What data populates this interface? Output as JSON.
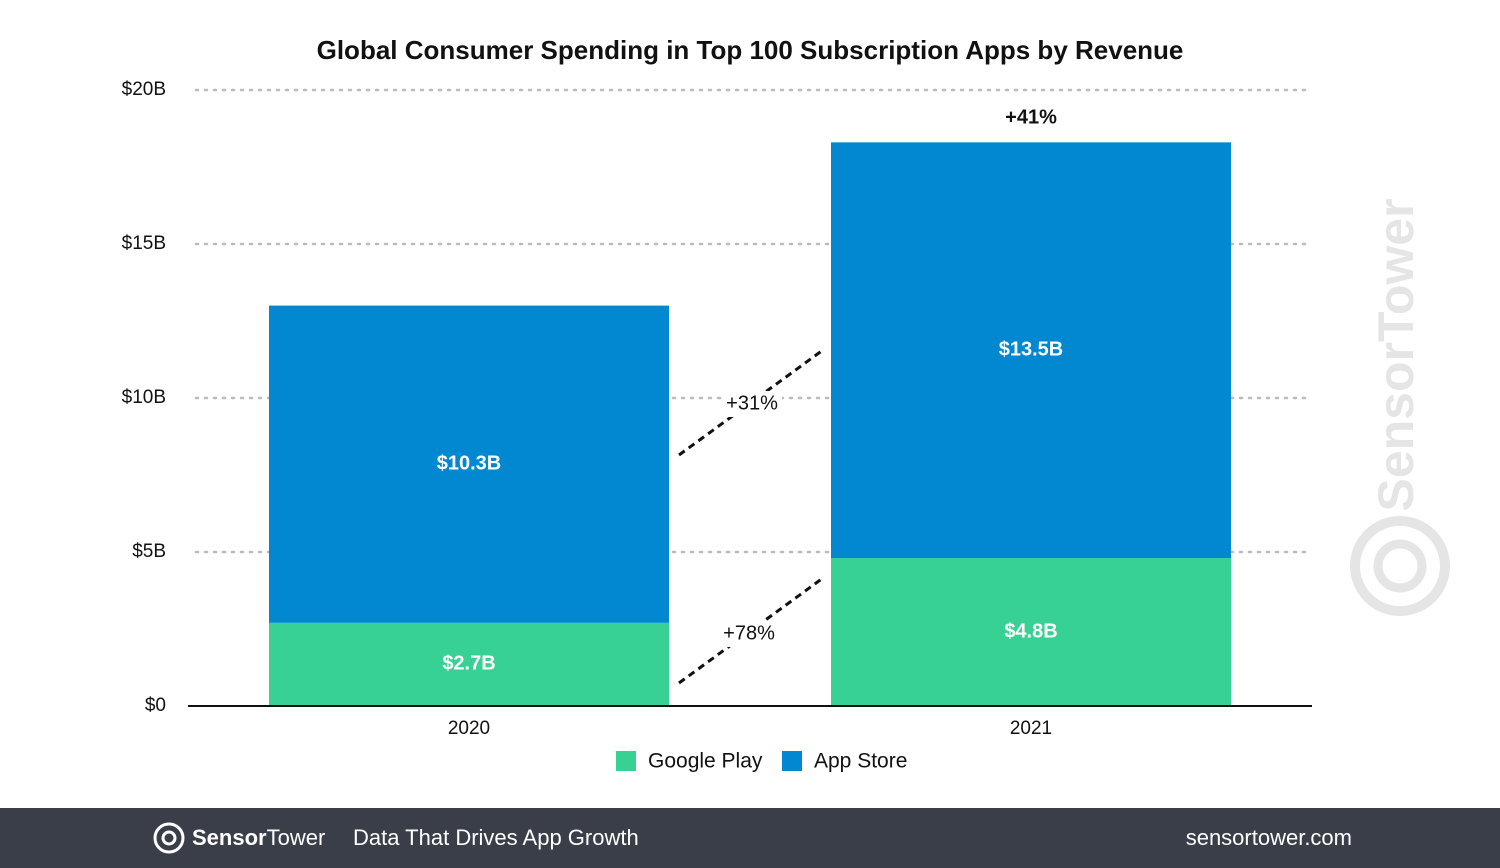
{
  "chart_data": {
    "type": "stacked_bar",
    "title": "Global Consumer Spending in Top 100 Subscription Apps by Revenue",
    "categories": [
      "2020",
      "2021"
    ],
    "series": [
      {
        "name": "Google Play",
        "color": "#38d194",
        "values": [
          2.7,
          4.8
        ],
        "value_labels": [
          "$2.7B",
          "$4.8B"
        ]
      },
      {
        "name": "App Store",
        "color": "#0288d1",
        "values": [
          10.3,
          13.5
        ],
        "value_labels": [
          "$10.3B",
          "$13.5B"
        ]
      }
    ],
    "ylim": [
      0,
      20
    ],
    "yticks": [
      {
        "value": 0,
        "label": "$0"
      },
      {
        "value": 5,
        "label": "$5B"
      },
      {
        "value": 10,
        "label": "$10B"
      },
      {
        "value": 15,
        "label": "$15B"
      },
      {
        "value": 20,
        "label": "$20B"
      }
    ],
    "grid": true,
    "legend": "bottom",
    "annotations": [
      "+41%",
      "+31%",
      "+78%"
    ]
  },
  "watermark": "SensorTower",
  "footer": {
    "brand_bold": "Sensor",
    "brand_light": "Tower",
    "tagline": "Data That Drives App Growth",
    "url": "sensortower.com"
  }
}
